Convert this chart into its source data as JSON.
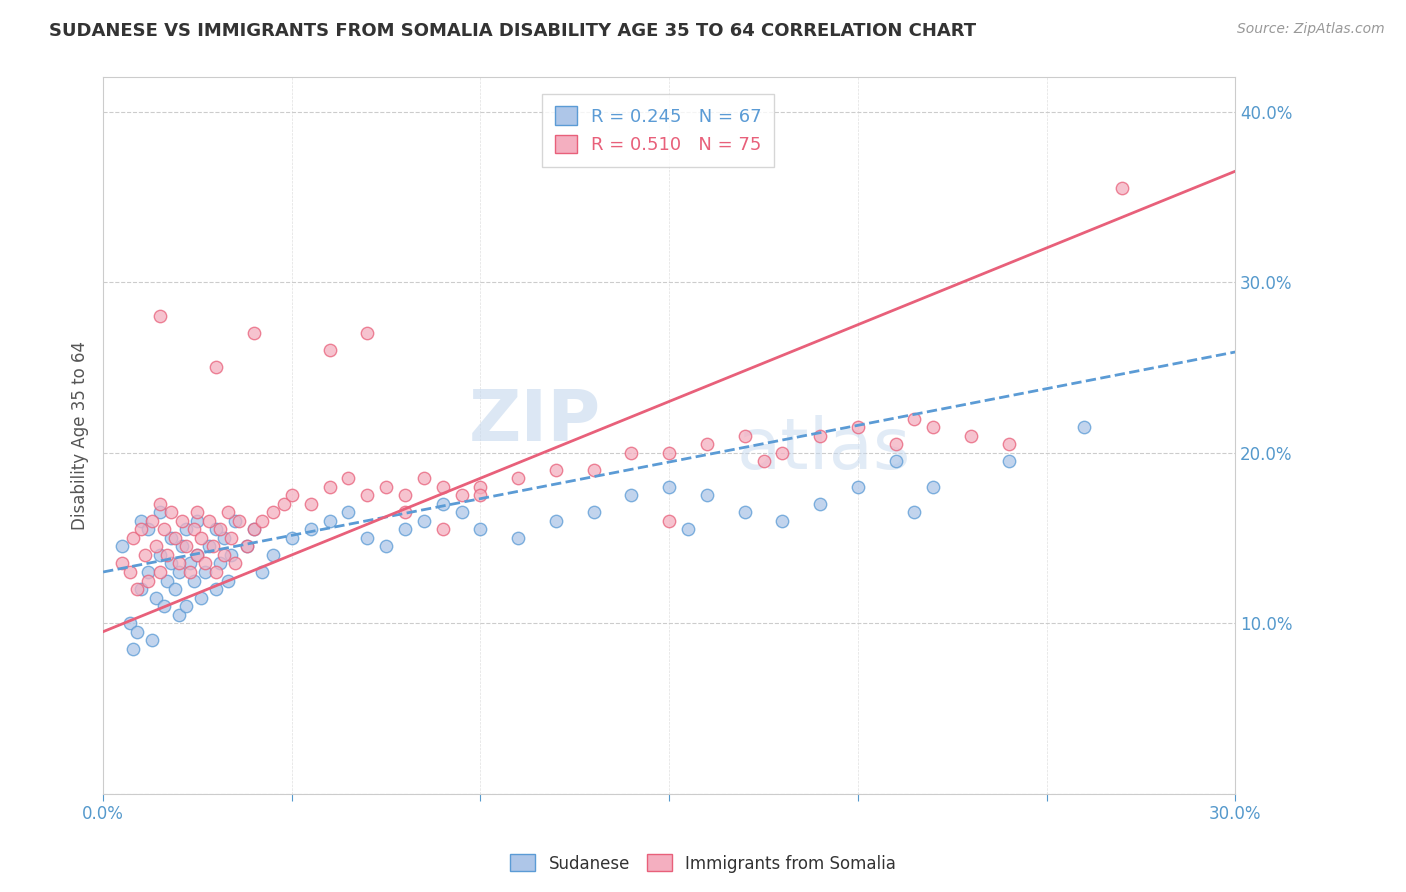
{
  "title": "SUDANESE VS IMMIGRANTS FROM SOMALIA DISABILITY AGE 35 TO 64 CORRELATION CHART",
  "source_text": "Source: ZipAtlas.com",
  "ylabel": "Disability Age 35 to 64",
  "xlim": [
    0.0,
    0.3
  ],
  "ylim": [
    0.0,
    0.42
  ],
  "background_color": "#ffffff",
  "watermark_zip": "ZIP",
  "watermark_atlas": "atlas",
  "sudanese_color": "#aec6e8",
  "somalia_color": "#f4afc0",
  "sudanese_edge_color": "#5b9bd5",
  "somalia_edge_color": "#e8607a",
  "sudanese_line_color": "#5b9bd5",
  "somalia_line_color": "#e8607a",
  "sudanese_R": 0.245,
  "sudanese_N": 67,
  "somalia_R": 0.51,
  "somalia_N": 75,
  "sudanese_points_x": [
    0.005,
    0.007,
    0.008,
    0.009,
    0.01,
    0.01,
    0.012,
    0.012,
    0.013,
    0.014,
    0.015,
    0.015,
    0.016,
    0.017,
    0.018,
    0.018,
    0.019,
    0.02,
    0.02,
    0.021,
    0.022,
    0.022,
    0.023,
    0.024,
    0.025,
    0.025,
    0.026,
    0.027,
    0.028,
    0.03,
    0.03,
    0.031,
    0.032,
    0.033,
    0.034,
    0.035,
    0.038,
    0.04,
    0.042,
    0.045,
    0.05,
    0.055,
    0.06,
    0.065,
    0.07,
    0.075,
    0.08,
    0.085,
    0.09,
    0.095,
    0.1,
    0.11,
    0.12,
    0.13,
    0.14,
    0.15,
    0.155,
    0.16,
    0.17,
    0.18,
    0.19,
    0.2,
    0.21,
    0.215,
    0.22,
    0.24,
    0.26
  ],
  "sudanese_points_y": [
    0.145,
    0.1,
    0.085,
    0.095,
    0.12,
    0.16,
    0.13,
    0.155,
    0.09,
    0.115,
    0.14,
    0.165,
    0.11,
    0.125,
    0.135,
    0.15,
    0.12,
    0.105,
    0.13,
    0.145,
    0.11,
    0.155,
    0.135,
    0.125,
    0.14,
    0.16,
    0.115,
    0.13,
    0.145,
    0.12,
    0.155,
    0.135,
    0.15,
    0.125,
    0.14,
    0.16,
    0.145,
    0.155,
    0.13,
    0.14,
    0.15,
    0.155,
    0.16,
    0.165,
    0.15,
    0.145,
    0.155,
    0.16,
    0.17,
    0.165,
    0.155,
    0.15,
    0.16,
    0.165,
    0.175,
    0.18,
    0.155,
    0.175,
    0.165,
    0.16,
    0.17,
    0.18,
    0.195,
    0.165,
    0.18,
    0.195,
    0.215
  ],
  "somalia_points_x": [
    0.005,
    0.007,
    0.008,
    0.009,
    0.01,
    0.011,
    0.012,
    0.013,
    0.014,
    0.015,
    0.015,
    0.016,
    0.017,
    0.018,
    0.019,
    0.02,
    0.021,
    0.022,
    0.023,
    0.024,
    0.025,
    0.025,
    0.026,
    0.027,
    0.028,
    0.029,
    0.03,
    0.031,
    0.032,
    0.033,
    0.034,
    0.035,
    0.036,
    0.038,
    0.04,
    0.042,
    0.045,
    0.048,
    0.05,
    0.055,
    0.06,
    0.065,
    0.07,
    0.075,
    0.08,
    0.085,
    0.09,
    0.095,
    0.1,
    0.11,
    0.12,
    0.13,
    0.14,
    0.15,
    0.16,
    0.17,
    0.175,
    0.18,
    0.19,
    0.2,
    0.21,
    0.215,
    0.22,
    0.23,
    0.24,
    0.015,
    0.03,
    0.04,
    0.06,
    0.07,
    0.08,
    0.09,
    0.1,
    0.15,
    0.27
  ],
  "somalia_points_y": [
    0.135,
    0.13,
    0.15,
    0.12,
    0.155,
    0.14,
    0.125,
    0.16,
    0.145,
    0.13,
    0.17,
    0.155,
    0.14,
    0.165,
    0.15,
    0.135,
    0.16,
    0.145,
    0.13,
    0.155,
    0.14,
    0.165,
    0.15,
    0.135,
    0.16,
    0.145,
    0.13,
    0.155,
    0.14,
    0.165,
    0.15,
    0.135,
    0.16,
    0.145,
    0.155,
    0.16,
    0.165,
    0.17,
    0.175,
    0.17,
    0.18,
    0.185,
    0.175,
    0.18,
    0.175,
    0.185,
    0.18,
    0.175,
    0.18,
    0.185,
    0.19,
    0.19,
    0.2,
    0.2,
    0.205,
    0.21,
    0.195,
    0.2,
    0.21,
    0.215,
    0.205,
    0.22,
    0.215,
    0.21,
    0.205,
    0.28,
    0.25,
    0.27,
    0.26,
    0.27,
    0.165,
    0.155,
    0.175,
    0.16,
    0.355
  ]
}
